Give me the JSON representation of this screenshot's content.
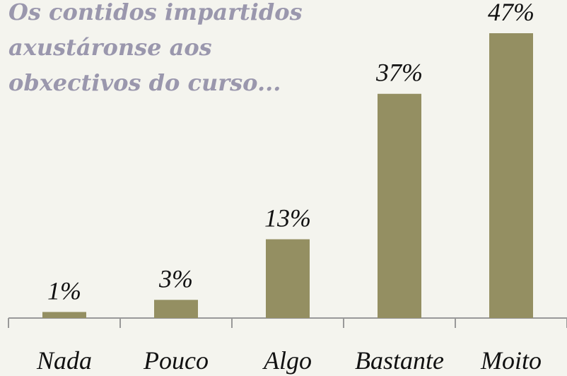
{
  "chart_data": {
    "type": "bar",
    "title": [
      "Os contidos impartidos",
      "axustáronse aos",
      "obxectivos do curso..."
    ],
    "categories": [
      "Nada",
      "Pouco",
      "Algo",
      "Bastante",
      "Moito"
    ],
    "values": [
      1,
      3,
      13,
      37,
      47
    ],
    "value_labels": [
      "1%",
      "3%",
      "13%",
      "37%",
      "47%"
    ],
    "color": "#948f62"
  }
}
